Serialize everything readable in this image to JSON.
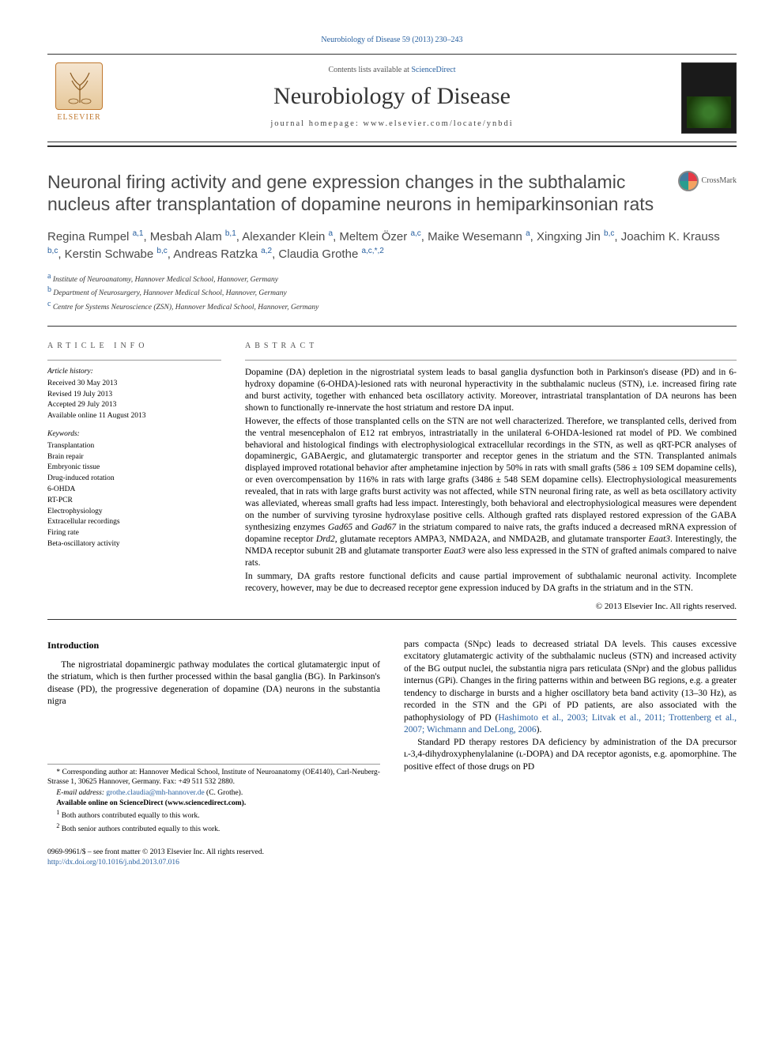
{
  "citation": "Neurobiology of Disease 59 (2013) 230–243",
  "banner": {
    "contents_pre": "Contents lists available at ",
    "contents_link": "ScienceDirect",
    "journal_name": "Neurobiology of Disease",
    "homepage_label": "journal homepage: www.elsevier.com/locate/ynbdi",
    "publisher": "ELSEVIER"
  },
  "crossmark_label": "CrossMark",
  "title": "Neuronal firing activity and gene expression changes in the subthalamic nucleus after transplantation of dopamine neurons in hemiparkinsonian rats",
  "authors_html": "Regina Rumpel <sup>a,1</sup>, Mesbah Alam <sup>b,1</sup>, Alexander Klein <sup>a</sup>, Meltem Özer <sup>a,c</sup>, Maike Wesemann <sup>a</sup>, Xingxing Jin <sup>b,c</sup>, Joachim K. Krauss <sup>b,c</sup>, Kerstin Schwabe <sup>b,c</sup>, Andreas Ratzka <sup>a,2</sup>, Claudia Grothe <sup>a,c,*,2</sup>",
  "affiliations": [
    {
      "marker": "a",
      "text": "Institute of Neuroanatomy, Hannover Medical School, Hannover, Germany"
    },
    {
      "marker": "b",
      "text": "Department of Neurosurgery, Hannover Medical School, Hannover, Germany"
    },
    {
      "marker": "c",
      "text": "Centre for Systems Neuroscience (ZSN), Hannover Medical School, Hannover, Germany"
    }
  ],
  "article_info": {
    "heading": "article info",
    "history_label": "Article history:",
    "history": [
      "Received 30 May 2013",
      "Revised 19 July 2013",
      "Accepted 29 July 2013",
      "Available online 11 August 2013"
    ],
    "keywords_label": "Keywords:",
    "keywords": [
      "Transplantation",
      "Brain repair",
      "Embryonic tissue",
      "Drug-induced rotation",
      "6-OHDA",
      "RT-PCR",
      "Electrophysiology",
      "Extracellular recordings",
      "Firing rate",
      "Beta-oscillatory activity"
    ]
  },
  "abstract": {
    "heading": "abstract",
    "p1": "Dopamine (DA) depletion in the nigrostriatal system leads to basal ganglia dysfunction both in Parkinson's disease (PD) and in 6-hydroxy dopamine (6-OHDA)-lesioned rats with neuronal hyperactivity in the subthalamic nucleus (STN), i.e. increased firing rate and burst activity, together with enhanced beta oscillatory activity. Moreover, intrastriatal transplantation of DA neurons has been shown to functionally re-innervate the host striatum and restore DA input.",
    "p2": "However, the effects of those transplanted cells on the STN are not well characterized. Therefore, we transplanted cells, derived from the ventral mesencephalon of E12 rat embryos, intrastriatally in the unilateral 6-OHDA-lesioned rat model of PD. We combined behavioral and histological findings with electrophysiological extracellular recordings in the STN, as well as qRT-PCR analyses of dopaminergic, GABAergic, and glutamatergic transporter and receptor genes in the striatum and the STN. Transplanted animals displayed improved rotational behavior after amphetamine injection by 50% in rats with small grafts (586 ± 109 SEM dopamine cells), or even overcompensation by 116% in rats with large grafts (3486 ± 548 SEM dopamine cells). Electrophysiological measurements revealed, that in rats with large grafts burst activity was not affected, while STN neuronal firing rate, as well as beta oscillatory activity was alleviated, whereas small grafts had less impact. Interestingly, both behavioral and electrophysiological measures were dependent on the number of surviving tyrosine hydroxylase positive cells. Although grafted rats displayed restored expression of the GABA synthesizing enzymes Gad65 and Gad67 in the striatum compared to naive rats, the grafts induced a decreased mRNA expression of dopamine receptor Drd2, glutamate receptors AMPA3, NMDA2A, and NMDA2B, and glutamate transporter Eaat3. Interestingly, the NMDA receptor subunit 2B and glutamate transporter Eaat3 were also less expressed in the STN of grafted animals compared to naive rats.",
    "p3": "In summary, DA grafts restore functional deficits and cause partial improvement of subthalamic neuronal activity. Incomplete recovery, however, may be due to decreased receptor gene expression induced by DA grafts in the striatum and in the STN.",
    "copyright": "© 2013 Elsevier Inc. All rights reserved."
  },
  "intro": {
    "heading": "Introduction",
    "p1": "The nigrostriatal dopaminergic pathway modulates the cortical glutamatergic input of the striatum, which is then further processed within the basal ganglia (BG). In Parkinson's disease (PD), the progressive degeneration of dopamine (DA) neurons in the substantia nigra",
    "p2a": "pars compacta (SNpc) leads to decreased striatal DA levels. This causes excessive excitatory glutamatergic activity of the subthalamic nucleus (STN) and increased activity of the BG output nuclei, the substantia nigra pars reticulata (SNpr) and the globus pallidus internus (GPi). Changes in the firing patterns within and between BG regions, e.g. a greater tendency to discharge in bursts and a higher oscillatory beta band activity (13–30 Hz), as recorded in the STN and the GPi of PD patients, are also associated with the pathophysiology of PD (",
    "p2_refs": "Hashimoto et al., 2003; Litvak et al., 2011; Trottenberg et al., 2007; Wichmann and DeLong, 2006",
    "p2b": ").",
    "p3": "Standard PD therapy restores DA deficiency by administration of the DA precursor ʟ-3,4-dihydroxyphenylalanine (ʟ-DOPA) and DA receptor agonists, e.g. apomorphine. The positive effect of those drugs on PD"
  },
  "footnotes": {
    "corr1": "* Corresponding author at: Hannover Medical School, Institute of Neuroanatomy (OE4140), Carl-Neuberg-Strasse 1, 30625 Hannover, Germany. Fax: +49 511 532 2880.",
    "email_label": "E-mail address: ",
    "email": "grothe.claudia@mh-hannover.de",
    "email_tail": " (C. Grothe).",
    "avail": "Available online on ScienceDirect (www.sciencedirect.com).",
    "n1": "Both authors contributed equally to this work.",
    "n2": "Both senior authors contributed equally to this work."
  },
  "bottom": {
    "issn": "0969-9961/$ – see front matter © 2013 Elsevier Inc. All rights reserved.",
    "doi": "http://dx.doi.org/10.1016/j.nbd.2013.07.016"
  },
  "colors": {
    "link": "#2860a0",
    "text_muted": "#4a4a4a",
    "elsevier_orange": "#c0782f"
  }
}
